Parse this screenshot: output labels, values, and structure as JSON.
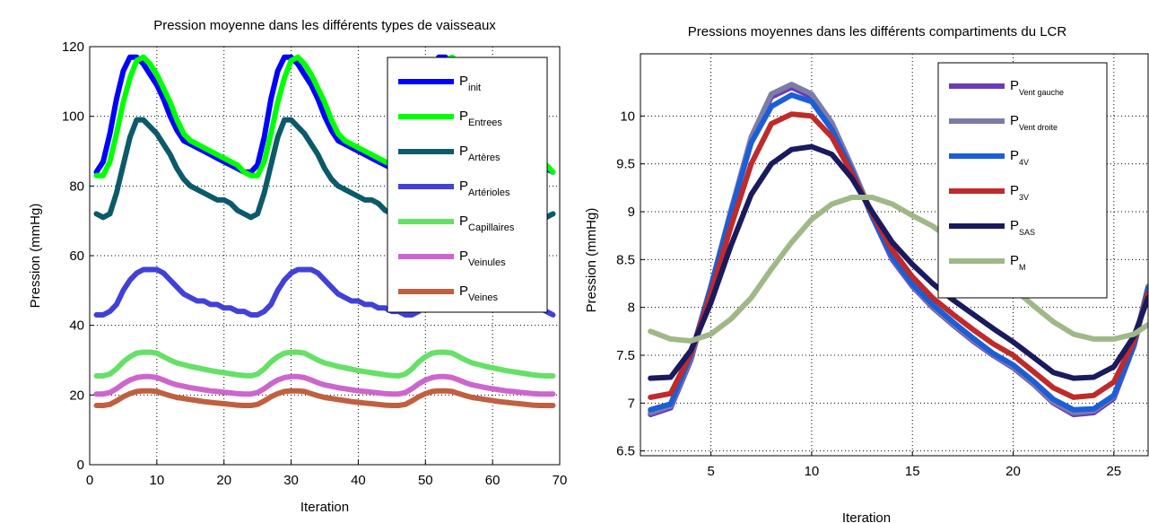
{
  "chart_data": [
    {
      "type": "line",
      "title": "Pression moyenne dans les différents types de vaisseaux",
      "xlabel": "Iteration",
      "ylabel": "Pression (mmHg)",
      "xlim": [
        0,
        70
      ],
      "ylim": [
        0,
        120
      ],
      "xticks": [
        "0",
        "10",
        "20",
        "30",
        "40",
        "50",
        "60",
        "70"
      ],
      "yticks": [
        "0",
        "20",
        "40",
        "60",
        "80",
        "100",
        "120"
      ],
      "grid": true,
      "legend_position": "top-right",
      "x": [
        1,
        2,
        3,
        4,
        5,
        6,
        7,
        8,
        9,
        10,
        11,
        12,
        13,
        14,
        15,
        16,
        17,
        18,
        19,
        20,
        21,
        22,
        23,
        24,
        25,
        26,
        27,
        28,
        29,
        30,
        31,
        32,
        33,
        34,
        35,
        36,
        37,
        38,
        39,
        40,
        41,
        42,
        43,
        44,
        45,
        46,
        47,
        48,
        49,
        50,
        51,
        52,
        53,
        54,
        55,
        56,
        57,
        58,
        59,
        60,
        61,
        62,
        63,
        64,
        65,
        66,
        67,
        68,
        69
      ],
      "series": [
        {
          "name": "P",
          "sub": "init",
          "color": "#0000ff",
          "values": [
            84,
            87,
            95,
            105,
            113,
            117,
            117,
            115,
            112,
            109,
            105,
            100,
            96,
            93,
            92,
            91,
            90,
            89,
            88,
            87,
            86,
            85,
            84,
            84,
            86,
            94,
            105,
            113,
            117,
            117,
            115,
            112,
            109,
            105,
            100,
            96,
            93,
            92,
            91,
            90,
            89,
            88,
            87,
            86,
            85,
            84,
            84,
            86,
            94,
            105,
            113,
            117,
            117,
            115,
            112,
            109,
            105,
            100,
            96,
            93,
            92,
            91,
            90,
            89,
            88,
            87,
            86,
            85,
            84
          ]
        },
        {
          "name": "P",
          "sub": "Entrees",
          "color": "#00ff00",
          "values": [
            83,
            83,
            87,
            95,
            104,
            111,
            116,
            117,
            115,
            112,
            108,
            104,
            99,
            95,
            93,
            92,
            91,
            90,
            89,
            88,
            87,
            86,
            84,
            83,
            83,
            87,
            95,
            104,
            111,
            116,
            117,
            115,
            112,
            108,
            104,
            99,
            95,
            93,
            92,
            91,
            90,
            89,
            88,
            87,
            86,
            84,
            83,
            83,
            87,
            95,
            104,
            111,
            116,
            117,
            115,
            112,
            108,
            104,
            99,
            95,
            93,
            92,
            91,
            90,
            89,
            88,
            87,
            86,
            84
          ]
        },
        {
          "name": "P",
          "sub": "Artères",
          "color": "#0b5a6a",
          "values": [
            72,
            71,
            72,
            78,
            86,
            94,
            99,
            99,
            97,
            95,
            92,
            89,
            85,
            82,
            80,
            79,
            78,
            77,
            76,
            76,
            75,
            73,
            72,
            71,
            72,
            78,
            86,
            94,
            99,
            99,
            97,
            95,
            92,
            89,
            85,
            82,
            80,
            79,
            78,
            77,
            76,
            76,
            75,
            73,
            72,
            71,
            72,
            78,
            86,
            94,
            99,
            99,
            97,
            95,
            92,
            89,
            85,
            82,
            80,
            79,
            78,
            77,
            76,
            76,
            75,
            73,
            72,
            71,
            72
          ]
        },
        {
          "name": "P",
          "sub": "Artérioles",
          "color": "#4141d8",
          "values": [
            43,
            43,
            44,
            46,
            50,
            53,
            55,
            56,
            56,
            56,
            55,
            53,
            51,
            49,
            48,
            47,
            47,
            46,
            46,
            45,
            45,
            44,
            44,
            43,
            43,
            44,
            46,
            50,
            53,
            55,
            56,
            56,
            56,
            55,
            53,
            51,
            49,
            48,
            47,
            47,
            46,
            46,
            45,
            45,
            44,
            44,
            43,
            43,
            44,
            46,
            50,
            53,
            55,
            56,
            56,
            56,
            55,
            53,
            51,
            49,
            48,
            47,
            47,
            46,
            46,
            45,
            45,
            44,
            43
          ]
        },
        {
          "name": "P",
          "sub": "Capillaires",
          "color": "#66e066",
          "values": [
            25.5,
            25.5,
            26,
            27.5,
            29.5,
            31,
            32,
            32.3,
            32.3,
            32,
            31,
            30,
            29.2,
            28.7,
            28.2,
            27.8,
            27.4,
            27,
            26.7,
            26.4,
            26.1,
            25.8,
            25.6,
            25.5,
            26,
            27.5,
            29.5,
            31,
            32,
            32.3,
            32.3,
            32,
            31,
            30,
            29.2,
            28.7,
            28.2,
            27.8,
            27.4,
            27,
            26.7,
            26.4,
            26.1,
            25.8,
            25.6,
            25.5,
            26,
            27.5,
            29.5,
            31,
            32,
            32.3,
            32.3,
            32,
            31,
            30,
            29.2,
            28.7,
            28.2,
            27.8,
            27.4,
            27,
            26.7,
            26.4,
            26.1,
            25.8,
            25.6,
            25.5,
            25.5
          ]
        },
        {
          "name": "P",
          "sub": "Veinules",
          "color": "#cc66cc",
          "values": [
            20.3,
            20.3,
            20.7,
            21.8,
            23.2,
            24.3,
            25,
            25.3,
            25.3,
            25,
            24.3,
            23.5,
            22.9,
            22.5,
            22.1,
            21.8,
            21.5,
            21.2,
            21,
            20.8,
            20.6,
            20.4,
            20.3,
            20.3,
            20.7,
            21.8,
            23.2,
            24.3,
            25,
            25.3,
            25.3,
            25,
            24.3,
            23.5,
            22.9,
            22.5,
            22.1,
            21.8,
            21.5,
            21.2,
            21,
            20.8,
            20.6,
            20.4,
            20.3,
            20.3,
            20.7,
            21.8,
            23.2,
            24.3,
            25,
            25.3,
            25.3,
            25,
            24.3,
            23.5,
            22.9,
            22.5,
            22.1,
            21.8,
            21.5,
            21.2,
            21,
            20.8,
            20.6,
            20.4,
            20.3,
            20.3,
            20.3
          ]
        },
        {
          "name": "P",
          "sub": "Veines",
          "color": "#c06040",
          "values": [
            17,
            17,
            17.3,
            18.3,
            19.5,
            20.4,
            21,
            21.2,
            21.2,
            21,
            20.4,
            19.8,
            19.3,
            19,
            18.7,
            18.4,
            18.1,
            17.9,
            17.7,
            17.5,
            17.3,
            17.1,
            17,
            17,
            17.3,
            18.3,
            19.5,
            20.4,
            21,
            21.2,
            21.2,
            21,
            20.4,
            19.8,
            19.3,
            19,
            18.7,
            18.4,
            18.1,
            17.9,
            17.7,
            17.5,
            17.3,
            17.1,
            17,
            17,
            17.3,
            18.3,
            19.5,
            20.4,
            21,
            21.2,
            21.2,
            21,
            20.4,
            19.8,
            19.3,
            19,
            18.7,
            18.4,
            18.1,
            17.9,
            17.7,
            17.5,
            17.3,
            17.1,
            17,
            17,
            17
          ]
        }
      ]
    },
    {
      "type": "line",
      "title": "Pressions moyennes dans les différents compartiments du LCR",
      "xlabel": "Iteration",
      "ylabel": "Pression (mmHg)",
      "xlim": [
        1.5,
        26.7
      ],
      "ylim": [
        6.45,
        10.65
      ],
      "xticks": [
        "5",
        "10",
        "15",
        "20",
        "25"
      ],
      "yticks": [
        "6.5",
        "7",
        "7.5",
        "8",
        "8.5",
        "9",
        "9.5",
        "10"
      ],
      "grid": true,
      "legend_position": "top-right",
      "x": [
        2,
        3,
        4,
        5,
        6,
        7,
        8,
        9,
        10,
        11,
        12,
        13,
        14,
        15,
        16,
        17,
        18,
        19,
        20,
        21,
        22,
        23,
        24,
        25,
        26,
        26.7
      ],
      "series": [
        {
          "name": "P",
          "sub": "Vent gauche",
          "color": "#6a3cb8",
          "values": [
            6.88,
            6.95,
            7.45,
            8.2,
            9.0,
            9.75,
            10.2,
            10.3,
            10.2,
            9.9,
            9.45,
            8.95,
            8.5,
            8.22,
            8.0,
            7.82,
            7.65,
            7.5,
            7.37,
            7.2,
            7.0,
            6.88,
            6.9,
            7.05,
            7.6,
            8.2
          ]
        },
        {
          "name": "P",
          "sub": "Vent droite",
          "color": "#7c7ca8",
          "values": [
            6.9,
            6.97,
            7.47,
            8.22,
            9.02,
            9.78,
            10.23,
            10.33,
            10.23,
            9.93,
            9.47,
            8.97,
            8.52,
            8.23,
            8.01,
            7.83,
            7.66,
            7.51,
            7.38,
            7.21,
            7.01,
            6.9,
            6.92,
            7.07,
            7.62,
            8.22
          ]
        },
        {
          "name": "P",
          "sub": "4V",
          "color": "#1a5ed8",
          "values": [
            6.93,
            6.99,
            7.5,
            8.22,
            9.0,
            9.72,
            10.1,
            10.22,
            10.15,
            9.86,
            9.43,
            8.95,
            8.53,
            8.24,
            8.03,
            7.85,
            7.68,
            7.52,
            7.4,
            7.23,
            7.04,
            6.93,
            6.94,
            7.08,
            7.6,
            8.2
          ]
        },
        {
          "name": "P",
          "sub": "3V",
          "color": "#c02a2a",
          "values": [
            7.06,
            7.1,
            7.52,
            8.15,
            8.85,
            9.5,
            9.92,
            10.02,
            10.0,
            9.78,
            9.4,
            8.98,
            8.6,
            8.32,
            8.1,
            7.93,
            7.77,
            7.62,
            7.5,
            7.33,
            7.16,
            7.06,
            7.08,
            7.22,
            7.65,
            8.15
          ]
        },
        {
          "name": "P",
          "sub": "SAS",
          "color": "#1a1a5e",
          "values": [
            7.26,
            7.27,
            7.55,
            8.05,
            8.65,
            9.18,
            9.5,
            9.65,
            9.68,
            9.6,
            9.35,
            9.0,
            8.68,
            8.45,
            8.25,
            8.08,
            7.93,
            7.78,
            7.64,
            7.48,
            7.32,
            7.26,
            7.27,
            7.38,
            7.7,
            8.1
          ]
        },
        {
          "name": "P",
          "sub": "M",
          "color": "#a0b888",
          "values": [
            7.75,
            7.67,
            7.65,
            7.72,
            7.88,
            8.1,
            8.4,
            8.68,
            8.92,
            9.08,
            9.15,
            9.15,
            9.08,
            8.96,
            8.85,
            8.7,
            8.55,
            8.38,
            8.2,
            8.02,
            7.85,
            7.72,
            7.67,
            7.67,
            7.72,
            7.82
          ]
        }
      ]
    }
  ]
}
